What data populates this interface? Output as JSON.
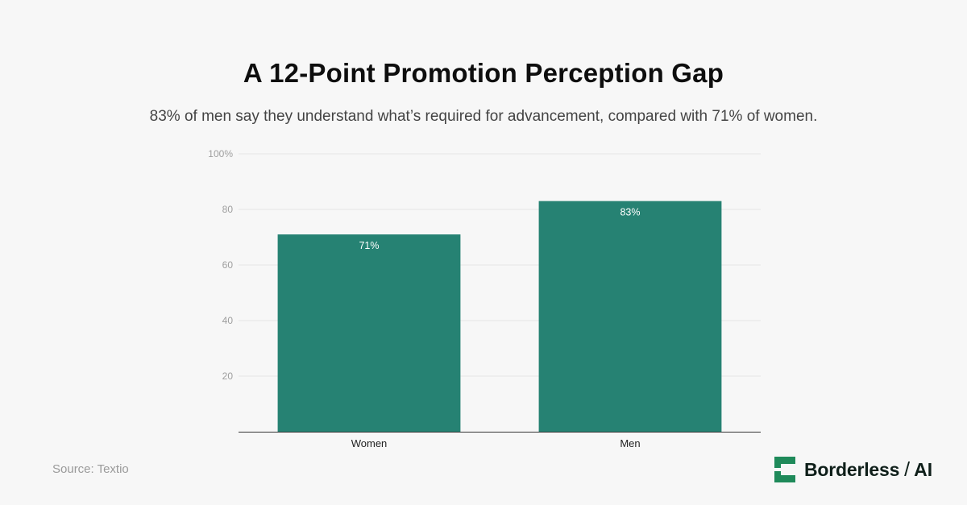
{
  "header": {
    "title": "A 12-Point Promotion Perception Gap",
    "subtitle": "83% of men say they understand what’s required for advancement, compared with 71% of women."
  },
  "chart_data": {
    "type": "bar",
    "categories": [
      "Women",
      "Men"
    ],
    "values": [
      71,
      83
    ],
    "data_labels": [
      "71%",
      "83%"
    ],
    "ylim": [
      0,
      100
    ],
    "yticks": [
      20,
      40,
      60,
      80,
      100
    ],
    "ytick_labels": [
      "20",
      "40",
      "60",
      "80",
      "100%"
    ],
    "grid": true,
    "legend": "none",
    "bar_color": "#268273",
    "xlabel": "",
    "ylabel": ""
  },
  "footer": {
    "source": "Source: Textio",
    "brand_name": "Borderless",
    "brand_separator": "/",
    "brand_suffix": "AI",
    "brand_icon": "borderless-logo-icon",
    "brand_color": "#1f8a5a"
  }
}
